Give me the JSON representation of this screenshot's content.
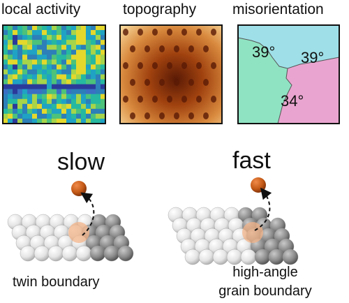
{
  "panels": {
    "activity": {
      "title": "local activity"
    },
    "topography": {
      "title": "topography"
    },
    "misorientation": {
      "title": "misorientation",
      "angles": [
        "39°",
        "39°",
        "34°"
      ],
      "colors": {
        "top": "#9fe0e8",
        "left": "#8fe3c3",
        "right": "#e9a5cf"
      }
    }
  },
  "bottom": {
    "left": {
      "speed": "slow",
      "caption": "twin boundary"
    },
    "right": {
      "speed": "fast",
      "caption_line1": "high-angle",
      "caption_line2": "grain boundary"
    }
  },
  "colors": {
    "adatom": "#c55a17",
    "highlight": "#f3b48a"
  }
}
